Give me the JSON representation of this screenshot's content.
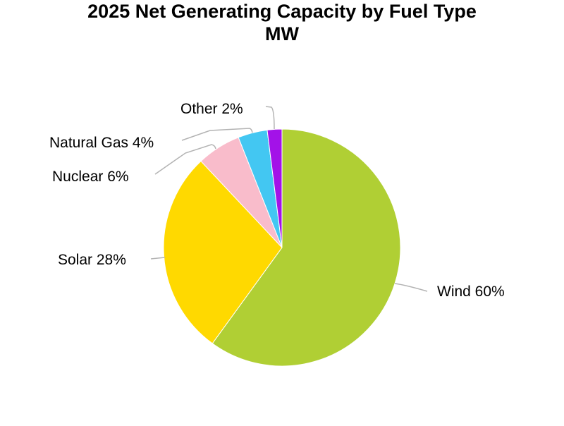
{
  "chart_data": {
    "type": "pie",
    "title": "2025 Net Generating Capacity by Fuel Type",
    "subtitle": "MW",
    "start": "12 o'clock",
    "direction": "clockwise",
    "legend": "none",
    "slices": [
      {
        "name": "Wind",
        "label": "Wind 60%",
        "value": 60,
        "color": "#b0cf34"
      },
      {
        "name": "Solar",
        "label": "Solar 28%",
        "value": 28,
        "color": "#ffd900"
      },
      {
        "name": "Nuclear",
        "label": "Nuclear 6%",
        "value": 6,
        "color": "#f9bccb"
      },
      {
        "name": "Natural Gas",
        "label": "Natural Gas 4%",
        "value": 4,
        "color": "#43c7f2"
      },
      {
        "name": "Other",
        "label": "Other 2%",
        "value": 2,
        "color": "#a312e8"
      }
    ]
  }
}
